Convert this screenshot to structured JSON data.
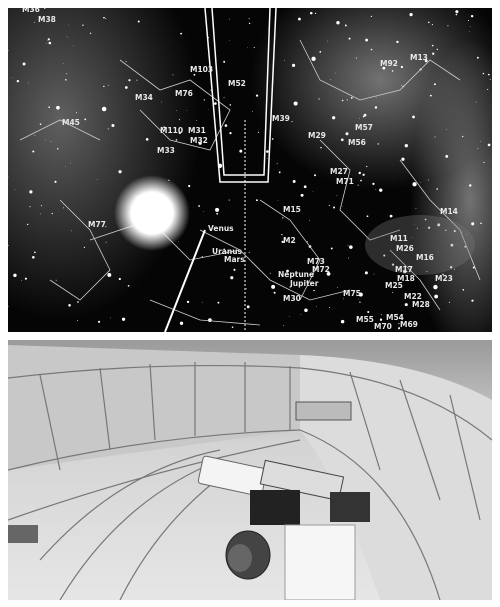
{
  "sky_labels": [
    "M36",
    "M38",
    "M103",
    "M52",
    "M76",
    "M34",
    "M45",
    "M110",
    "M31",
    "M32",
    "M33",
    "M39",
    "M29",
    "M92",
    "M13",
    "M57",
    "M56",
    "M27",
    "M71",
    "M15",
    "M2",
    "M77",
    "Venus",
    "Uranus",
    "Mars",
    "Neptune",
    "Jupiter",
    "M73",
    "M72",
    "M30",
    "M75",
    "M11",
    "M26",
    "M16",
    "M17",
    "M18",
    "M25",
    "M23",
    "M28",
    "M22",
    "M55",
    "M54",
    "M70",
    "M69",
    "M14"
  ]
}
